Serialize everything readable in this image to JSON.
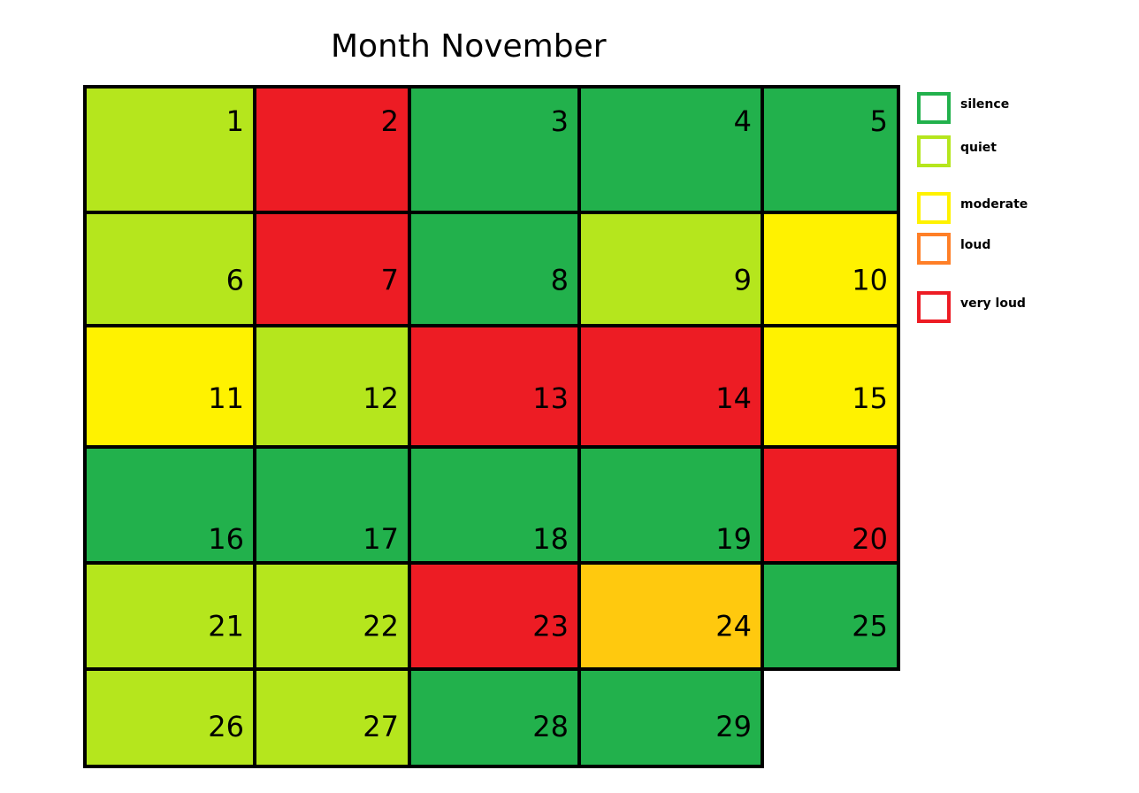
{
  "title": "Month November",
  "chart_data": {
    "type": "heatmap",
    "title": "Month November",
    "levels": [
      {
        "key": "silence",
        "label": "silence",
        "color": "#22b14c"
      },
      {
        "key": "quiet",
        "label": "quiet",
        "color": "#b5e61d"
      },
      {
        "key": "moderate",
        "label": "moderate",
        "color": "#fff200"
      },
      {
        "key": "loud",
        "label": "loud",
        "color": "#ff7f27"
      },
      {
        "key": "very_loud",
        "label": "very loud",
        "color": "#ed1c24"
      }
    ],
    "days": [
      {
        "day": 1,
        "level": "quiet"
      },
      {
        "day": 2,
        "level": "very_loud"
      },
      {
        "day": 3,
        "level": "silence"
      },
      {
        "day": 4,
        "level": "silence"
      },
      {
        "day": 5,
        "level": "silence"
      },
      {
        "day": 6,
        "level": "quiet"
      },
      {
        "day": 7,
        "level": "very_loud"
      },
      {
        "day": 8,
        "level": "silence"
      },
      {
        "day": 9,
        "level": "quiet"
      },
      {
        "day": 10,
        "level": "moderate"
      },
      {
        "day": 11,
        "level": "moderate"
      },
      {
        "day": 12,
        "level": "quiet"
      },
      {
        "day": 13,
        "level": "very_loud"
      },
      {
        "day": 14,
        "level": "very_loud"
      },
      {
        "day": 15,
        "level": "moderate"
      },
      {
        "day": 16,
        "level": "silence"
      },
      {
        "day": 17,
        "level": "silence"
      },
      {
        "day": 18,
        "level": "silence"
      },
      {
        "day": 19,
        "level": "silence"
      },
      {
        "day": 20,
        "level": "very_loud"
      },
      {
        "day": 21,
        "level": "quiet"
      },
      {
        "day": 22,
        "level": "quiet"
      },
      {
        "day": 23,
        "level": "very_loud"
      },
      {
        "day": 24,
        "level": "loud",
        "color": "#ffc90e"
      },
      {
        "day": 25,
        "level": "silence"
      },
      {
        "day": 26,
        "level": "quiet"
      },
      {
        "day": 27,
        "level": "quiet"
      },
      {
        "day": 28,
        "level": "silence"
      },
      {
        "day": 29,
        "level": "silence"
      }
    ]
  }
}
